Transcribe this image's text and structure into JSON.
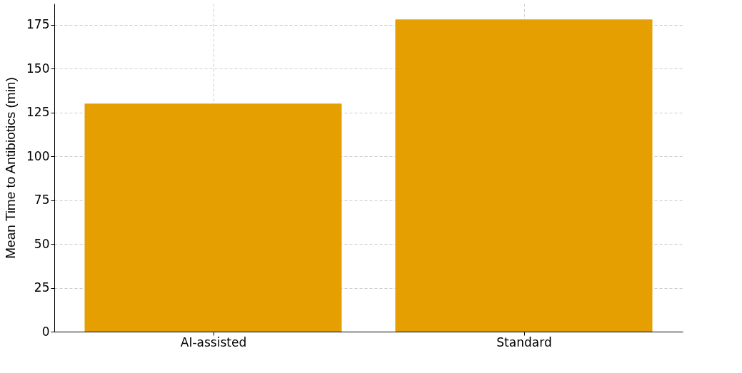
{
  "chart_data": {
    "type": "bar",
    "ylabel": "Mean Time to Antibiotics (min)",
    "categories": [
      "AI-assisted",
      "Standard"
    ],
    "values": [
      130,
      178
    ],
    "color": "#e69f00",
    "ylim": [
      0,
      187
    ],
    "yticks": [
      0,
      25,
      50,
      75,
      100,
      125,
      150,
      175
    ],
    "grid": true
  }
}
